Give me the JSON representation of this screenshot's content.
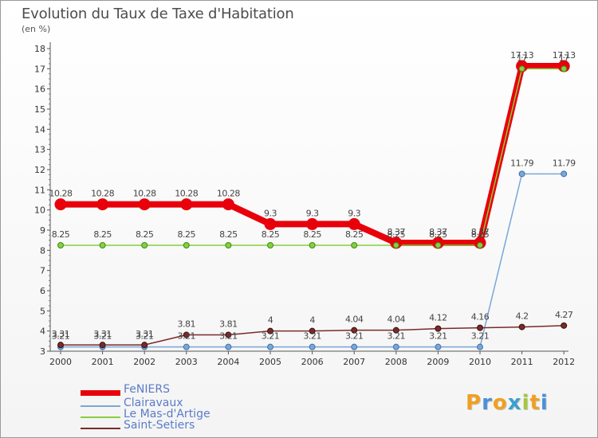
{
  "title": "Evolution du Taux de Taxe d'Habitation",
  "unit": "(en %)",
  "colors": {
    "FeNIERS": "#e8000b",
    "Clairavaux": "#7aa7d6",
    "LeMasdArtige": "#86cf3f",
    "SaintSetiers": "#7a2a2a"
  },
  "legend": [
    {
      "name": "FeNIERS",
      "color": "#e8000b"
    },
    {
      "name": "Clairavaux",
      "color": "#7aa7d6"
    },
    {
      "name": "Le Mas-d'Artige",
      "color": "#86cf3f"
    },
    {
      "name": "Saint-Setiers",
      "color": "#7a2a2a"
    }
  ],
  "logo": {
    "letters": [
      "P",
      "r",
      "o",
      "x",
      "i",
      "t",
      "i"
    ],
    "colors": [
      "#f0a020",
      "#4a90d9",
      "#f0a020",
      "#3aa0d0",
      "#a6c83a",
      "#f0a020",
      "#4a90d9"
    ]
  },
  "chart_data": {
    "type": "line",
    "title": "Evolution du Taux de Taxe d'Habitation",
    "ylabel": "(en %)",
    "xlabel": "",
    "x": [
      "2000",
      "2001",
      "2002",
      "2003",
      "2004",
      "2005",
      "2006",
      "2007",
      "2008",
      "2009",
      "2010",
      "2011",
      "2012"
    ],
    "ylim": [
      3,
      18
    ],
    "yticks": [
      3,
      4,
      5,
      6,
      7,
      8,
      9,
      10,
      11,
      12,
      13,
      14,
      15,
      16,
      17,
      18
    ],
    "series": [
      {
        "name": "FeNIERS",
        "values": [
          10.28,
          10.28,
          10.28,
          10.28,
          10.28,
          9.3,
          9.3,
          9.3,
          8.37,
          8.37,
          8.37,
          17.13,
          17.13
        ],
        "labels": [
          "10.28",
          "10.28",
          "10.28",
          "10.28",
          "10.28",
          "9.3",
          "9.3",
          "9.3",
          "8.37",
          "8.37",
          "8.37",
          "17.13",
          "17.13"
        ]
      },
      {
        "name": "Clairavaux",
        "values": [
          3.21,
          3.21,
          3.21,
          3.21,
          3.21,
          3.21,
          3.21,
          3.21,
          3.21,
          3.21,
          3.21,
          11.79,
          11.79
        ],
        "labels": [
          "3.21",
          "3.21",
          "3.21",
          "3.21",
          "3.21",
          "3.21",
          "3.21",
          "3.21",
          "3.21",
          "3.21",
          "3.21",
          "11.79",
          "11.79"
        ]
      },
      {
        "name": "Le Mas-d'Artige",
        "values": [
          8.25,
          8.25,
          8.25,
          8.25,
          8.25,
          8.25,
          8.25,
          8.25,
          8.25,
          8.25,
          8.25,
          17,
          17
        ],
        "labels": [
          "8.25",
          "8.25",
          "8.25",
          "8.25",
          "8.25",
          "8.25",
          "8.25",
          "8.25",
          "8.25",
          "8.25",
          "8.25",
          "17",
          "17"
        ]
      },
      {
        "name": "Saint-Setiers",
        "values": [
          3.31,
          3.31,
          3.31,
          3.81,
          3.81,
          4,
          4,
          4.04,
          4.04,
          4.12,
          4.16,
          4.2,
          4.27
        ],
        "labels": [
          "3.31",
          "3.31",
          "3.31",
          "3.81",
          "3.81",
          "4",
          "4",
          "4.04",
          "4.04",
          "4.12",
          "4.16",
          "4.2",
          "4.27"
        ]
      }
    ],
    "grid": false,
    "legend_position": "bottom-left"
  }
}
